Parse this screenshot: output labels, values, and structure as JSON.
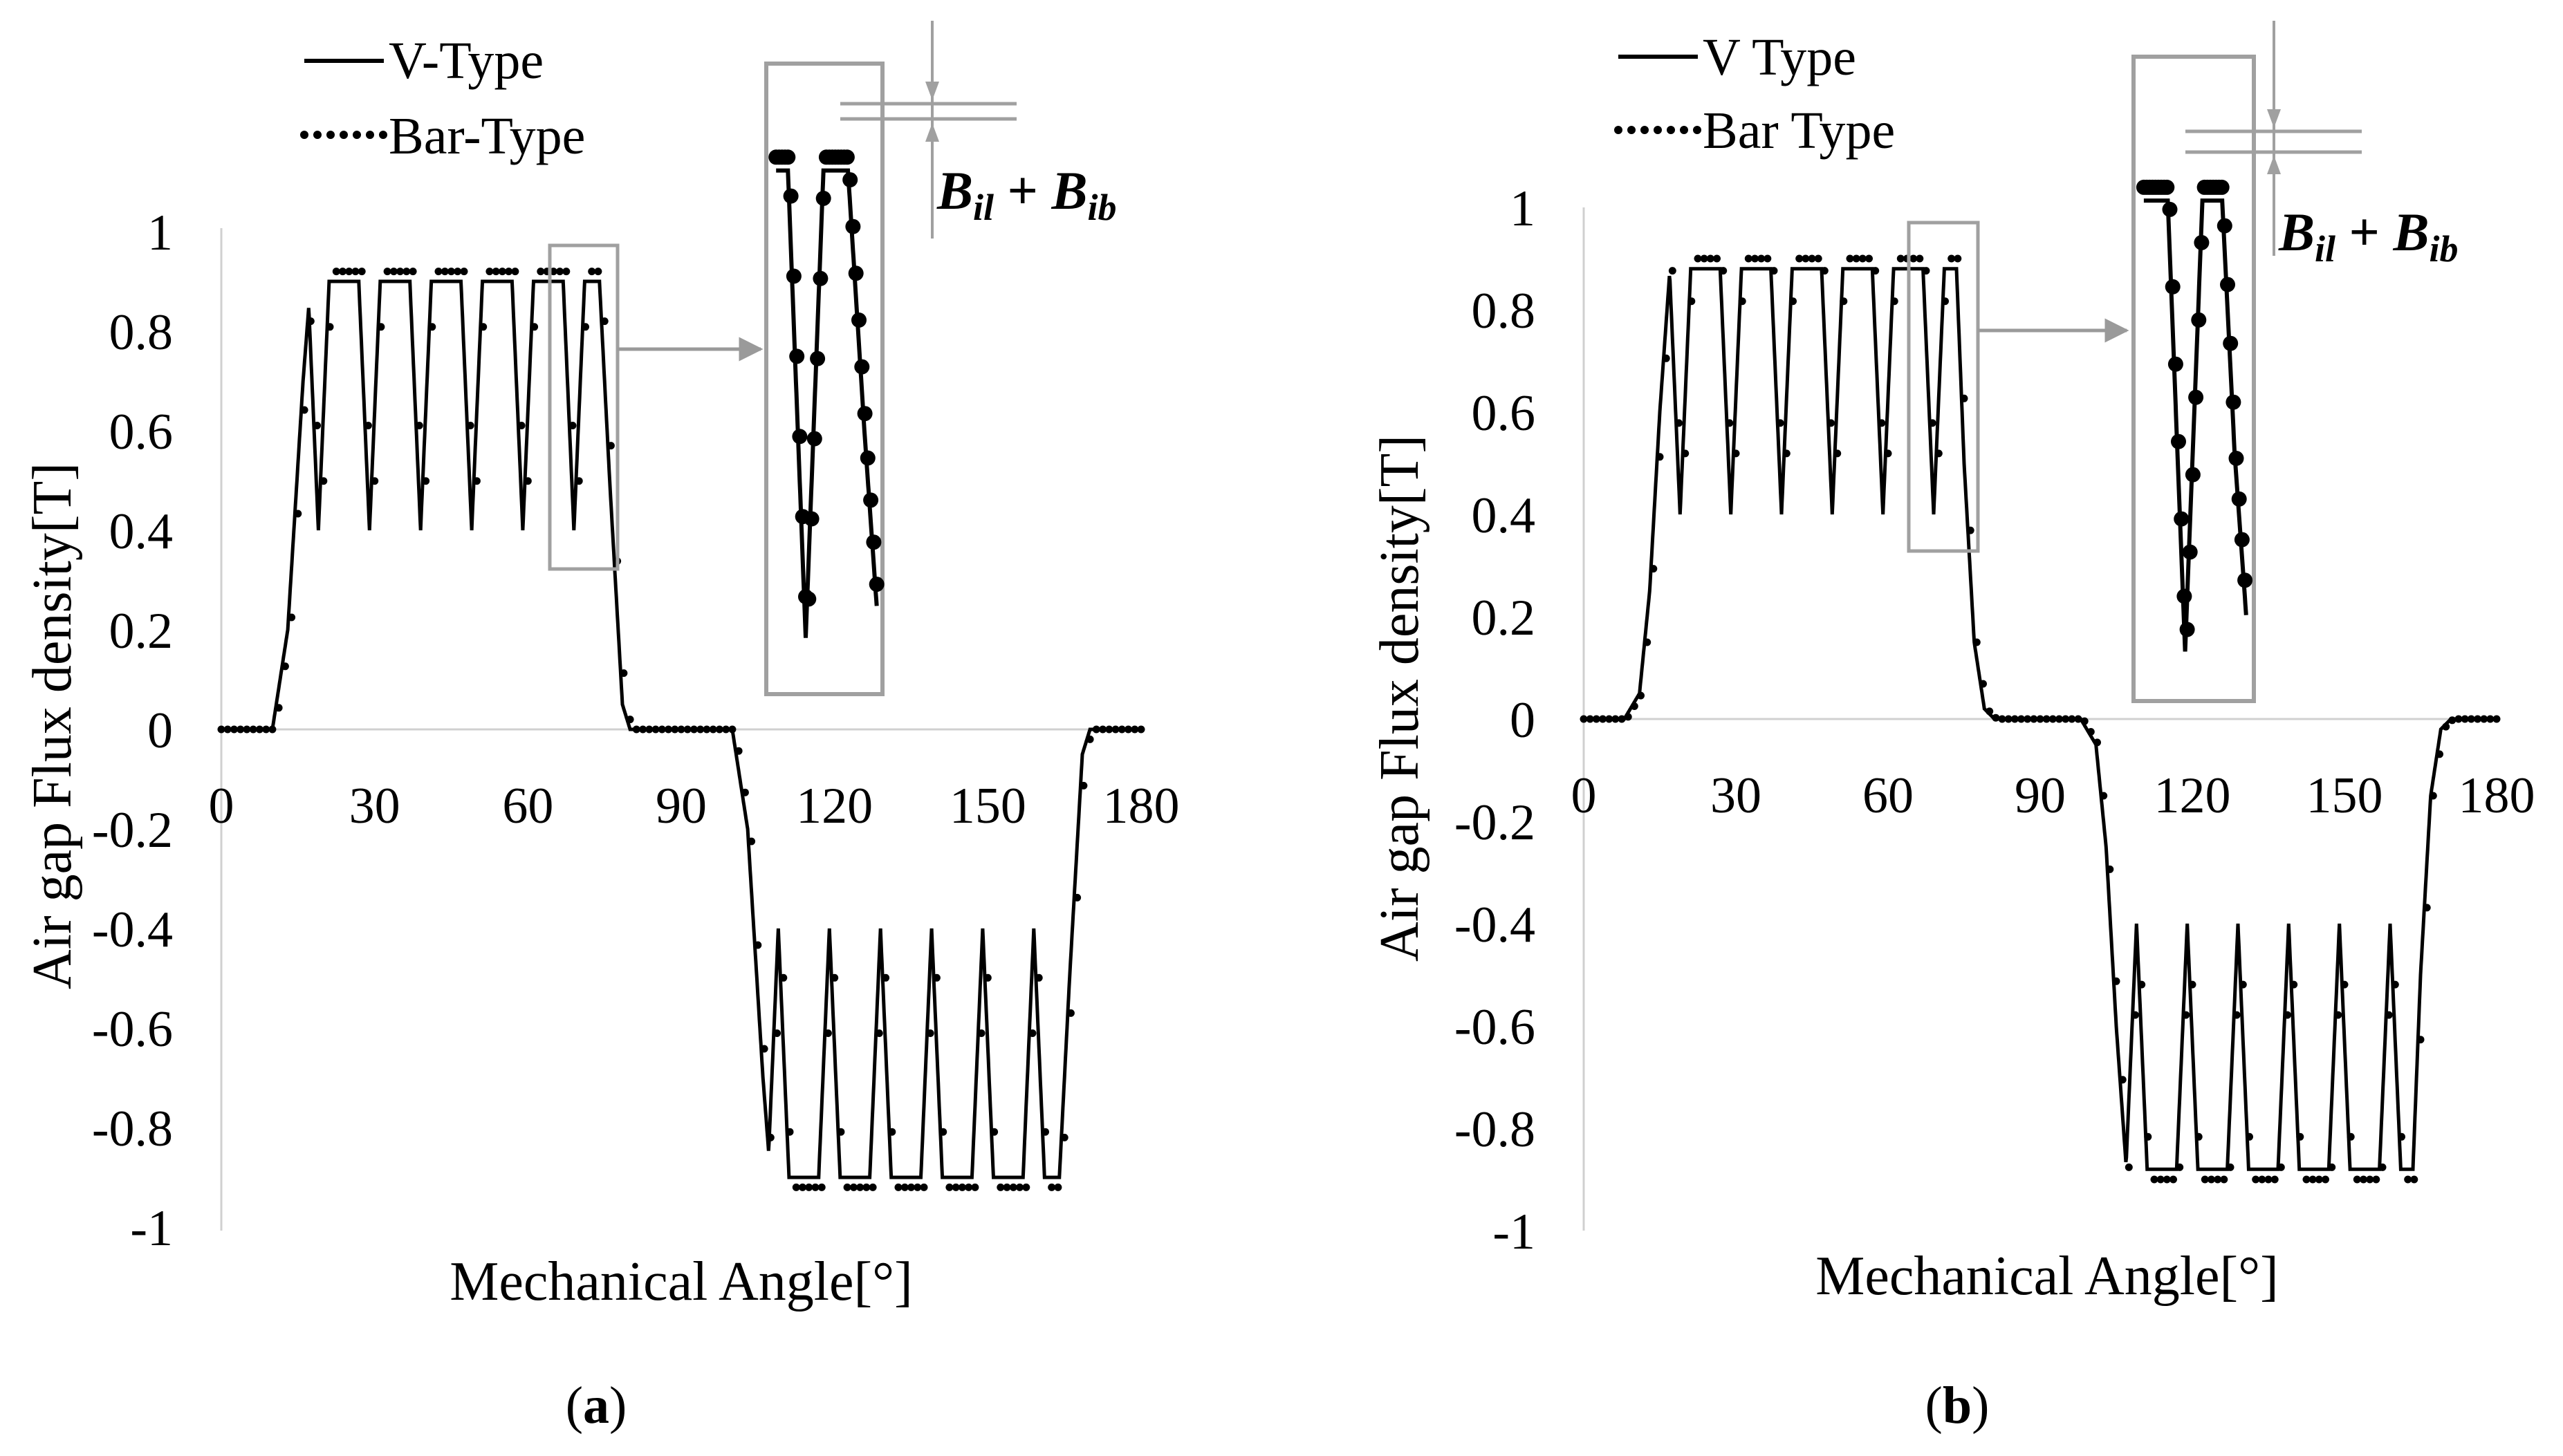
{
  "chart_data": [
    {
      "id": "a",
      "panel_label": "(a)",
      "panel_label_letter": "a",
      "type": "line",
      "xlabel": "Mechanical Angle[°]",
      "ylabel": "Air gap Flux density[T]",
      "xlim": [
        0,
        180
      ],
      "ylim": [
        -1,
        1
      ],
      "xticks": [
        "0",
        "30",
        "60",
        "90",
        "120",
        "150",
        "180"
      ],
      "yticks": [
        "1",
        "0.8",
        "0.6",
        "0.4",
        "0.2",
        "0",
        "-0.2",
        "-0.4",
        "-0.6",
        "-0.8",
        "-1"
      ],
      "series": [
        {
          "name": "V-Type",
          "style": "solid"
        },
        {
          "name": "Bar-Type",
          "style": "dotted"
        }
      ],
      "waveform": {
        "dip_centers": [
          19,
          29,
          39,
          49,
          59,
          69
        ],
        "plateau": 0.9,
        "dip_min": 0.4,
        "ramp": [
          [
            0,
            0
          ],
          [
            10,
            0
          ],
          [
            13,
            0.2
          ],
          [
            16,
            0.7
          ],
          [
            17.5,
            0.9
          ],
          [
            74,
            0.9
          ],
          [
            76,
            0.5
          ],
          [
            78.5,
            0.05
          ],
          [
            80,
            0
          ],
          [
            90,
            0
          ]
        ],
        "bar_plateau": 0.92,
        "bar_phase_shift": 0.6
      },
      "annotation": {
        "expression": "B_il + B_ib",
        "zoom_box_x": [
          64.5,
          78
        ],
        "zoom_box_y": [
          0.32,
          0.95
        ]
      }
    },
    {
      "id": "b",
      "panel_label": "(b)",
      "panel_label_letter": "b",
      "type": "line",
      "xlabel": "Mechanical Angle[°]",
      "ylabel": "Air gap Flux density[T]",
      "xlim": [
        0,
        180
      ],
      "ylim": [
        -1,
        1
      ],
      "xticks": [
        "0",
        "30",
        "60",
        "90",
        "120",
        "150",
        "180"
      ],
      "yticks": [
        "1",
        "0.8",
        "0.6",
        "0.4",
        "0.2",
        "0",
        "-0.2",
        "-0.4",
        "-0.6",
        "-0.8",
        "-1"
      ],
      "series": [
        {
          "name": "V Type",
          "style": "solid"
        },
        {
          "name": "Bar Type",
          "style": "dotted"
        }
      ],
      "waveform": {
        "dip_centers": [
          19,
          29,
          39,
          49,
          59,
          69
        ],
        "plateau": 0.88,
        "dip_min": 0.4,
        "ramp": [
          [
            0,
            0
          ],
          [
            8,
            0
          ],
          [
            11,
            0.05
          ],
          [
            13,
            0.25
          ],
          [
            15,
            0.6
          ],
          [
            17,
            0.88
          ],
          [
            73.5,
            0.88
          ],
          [
            75,
            0.5
          ],
          [
            77,
            0.15
          ],
          [
            79,
            0.02
          ],
          [
            81,
            0
          ],
          [
            90,
            0
          ]
        ],
        "bar_plateau": 0.9,
        "bar_phase_shift": 0.5
      },
      "annotation": {
        "expression": "B_il + B_ib",
        "zoom_box_x": [
          63,
          77
        ],
        "zoom_box_y": [
          0.34,
          0.97
        ]
      }
    }
  ]
}
